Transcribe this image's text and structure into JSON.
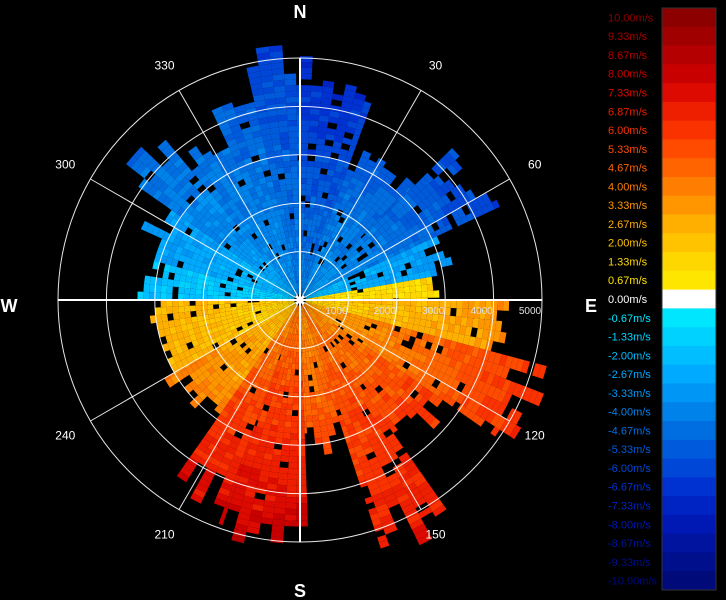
{
  "chart_data": {
    "type": "heatmap",
    "subtype": "polar-ppi-radial-velocity",
    "compass": {
      "north": "N",
      "south": "S",
      "east": "E",
      "west": "W"
    },
    "bearing_ticks": [
      30,
      60,
      120,
      150,
      210,
      240,
      300,
      330
    ],
    "range_ticks": [
      1000,
      2000,
      3000,
      4000,
      5000
    ],
    "range_max": 5000,
    "grid": true,
    "legend_position": "right",
    "colorbar": [
      {
        "label": "10.00m/s",
        "color": "#8c0000",
        "value": 10.0
      },
      {
        "label": "9.33m/s",
        "color": "#a00000",
        "value": 9.33
      },
      {
        "label": "8.67m/s",
        "color": "#b40000",
        "value": 8.67
      },
      {
        "label": "8.00m/s",
        "color": "#c80000",
        "value": 8.0
      },
      {
        "label": "7.33m/s",
        "color": "#dc0a00",
        "value": 7.33
      },
      {
        "label": "6.87m/s",
        "color": "#ee1e00",
        "value": 6.87
      },
      {
        "label": "6.00m/s",
        "color": "#fa3200",
        "value": 6.0
      },
      {
        "label": "5.33m/s",
        "color": "#ff4b00",
        "value": 5.33
      },
      {
        "label": "4.67m/s",
        "color": "#ff6400",
        "value": 4.67
      },
      {
        "label": "4.00m/s",
        "color": "#ff7d00",
        "value": 4.0
      },
      {
        "label": "3.33m/s",
        "color": "#ff9600",
        "value": 3.33
      },
      {
        "label": "2.67m/s",
        "color": "#ffaf00",
        "value": 2.67
      },
      {
        "label": "2.00m/s",
        "color": "#ffc300",
        "value": 2.0
      },
      {
        "label": "1.33m/s",
        "color": "#ffd700",
        "value": 1.33
      },
      {
        "label": "0.67m/s",
        "color": "#ffe600",
        "value": 0.67
      },
      {
        "label": "0.00m/s",
        "color": "#ffffff",
        "value": 0.0
      },
      {
        "label": "-0.67m/s",
        "color": "#00e6ff",
        "value": -0.67
      },
      {
        "label": "-1.33m/s",
        "color": "#00d2ff",
        "value": -1.33
      },
      {
        "label": "-2.00m/s",
        "color": "#00beff",
        "value": -2.0
      },
      {
        "label": "-2.67m/s",
        "color": "#00aaff",
        "value": -2.67
      },
      {
        "label": "-3.33m/s",
        "color": "#0096f5",
        "value": -3.33
      },
      {
        "label": "-4.00m/s",
        "color": "#0082eb",
        "value": -4.0
      },
      {
        "label": "-4.67m/s",
        "color": "#006ee1",
        "value": -4.67
      },
      {
        "label": "-5.33m/s",
        "color": "#005adc",
        "value": -5.33
      },
      {
        "label": "-6.00m/s",
        "color": "#0046d7",
        "value": -6.0
      },
      {
        "label": "-6.67m/s",
        "color": "#0032d2",
        "value": -6.67
      },
      {
        "label": "-7.33m/s",
        "color": "#0023c3",
        "value": -7.33
      },
      {
        "label": "-8.00m/s",
        "color": "#0019b4",
        "value": -8.0
      },
      {
        "label": "-8.67m/s",
        "color": "#0014a0",
        "value": -8.67
      },
      {
        "label": "-9.33m/s",
        "color": "#000f8c",
        "value": -9.33
      },
      {
        "label": "-10.00m/s",
        "color": "#000a78",
        "value": -10.0
      }
    ],
    "sectors": [
      {
        "from": 0,
        "to": 20,
        "max_range": 4700,
        "v_near": -4.0,
        "v_far": -7.0
      },
      {
        "from": 20,
        "to": 45,
        "max_range": 3200,
        "v_near": -3.3,
        "v_far": -5.3
      },
      {
        "from": 45,
        "to": 65,
        "max_range": 4300,
        "v_near": -3.0,
        "v_far": -6.0
      },
      {
        "from": 65,
        "to": 80,
        "max_range": 3000,
        "v_near": -2.0,
        "v_far": -3.3
      },
      {
        "from": 80,
        "to": 90,
        "max_range": 2800,
        "v_near": 0.67,
        "v_far": 1.33
      },
      {
        "from": 90,
        "to": 105,
        "max_range": 4000,
        "v_near": 1.33,
        "v_far": 3.33
      },
      {
        "from": 105,
        "to": 125,
        "max_range": 5000,
        "v_near": 2.67,
        "v_far": 6.0
      },
      {
        "from": 125,
        "to": 145,
        "max_range": 3600,
        "v_near": 3.33,
        "v_far": 6.0
      },
      {
        "from": 145,
        "to": 162,
        "max_range": 5200,
        "v_near": 4.0,
        "v_far": 6.87
      },
      {
        "from": 162,
        "to": 178,
        "max_range": 2900,
        "v_near": 3.33,
        "v_far": 5.33
      },
      {
        "from": 178,
        "to": 200,
        "max_range": 4900,
        "v_near": 4.0,
        "v_far": 8.0
      },
      {
        "from": 200,
        "to": 215,
        "max_range": 4400,
        "v_near": 3.33,
        "v_far": 7.33
      },
      {
        "from": 215,
        "to": 240,
        "max_range": 3000,
        "v_near": 2.0,
        "v_far": 4.0
      },
      {
        "from": 240,
        "to": 270,
        "max_range": 3000,
        "v_near": 1.33,
        "v_far": 2.67
      },
      {
        "from": 270,
        "to": 285,
        "max_range": 3200,
        "v_near": -1.33,
        "v_far": -2.0
      },
      {
        "from": 285,
        "to": 305,
        "max_range": 3300,
        "v_near": -2.0,
        "v_far": -3.33
      },
      {
        "from": 305,
        "to": 320,
        "max_range": 4200,
        "v_near": -2.67,
        "v_far": -4.67
      },
      {
        "from": 320,
        "to": 335,
        "max_range": 3600,
        "v_near": -3.33,
        "v_far": -4.67
      },
      {
        "from": 335,
        "to": 347,
        "max_range": 4600,
        "v_near": -3.33,
        "v_far": -5.33
      },
      {
        "from": 347,
        "to": 360,
        "max_range": 4900,
        "v_near": -4.0,
        "v_far": -6.0
      }
    ]
  }
}
